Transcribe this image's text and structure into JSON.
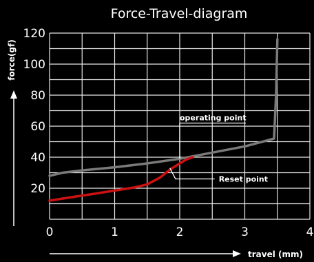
{
  "chart_data": {
    "type": "line",
    "title": "Force-Travel-diagram",
    "xlabel": "travel (mm)",
    "ylabel": "force(gf)",
    "xlim": [
      0,
      4
    ],
    "ylim": [
      0,
      120
    ],
    "x_ticks": [
      "0",
      "1",
      "2",
      "3",
      "4"
    ],
    "y_ticks": [
      "20",
      "40",
      "60",
      "80",
      "100",
      "120"
    ],
    "grid": true,
    "colors": {
      "background": "#000000",
      "grid": "#e8e8e8",
      "press_curve": "#7a7a7a",
      "release_curve": "#cc1111",
      "text": "#ffffff"
    },
    "series": [
      {
        "color": "#7a7a7a",
        "x": [
          0,
          0.2,
          0.5,
          1.0,
          1.5,
          2.0,
          2.5,
          3.0,
          3.45,
          3.48,
          3.5
        ],
        "y": [
          28,
          30,
          31.5,
          33.5,
          36,
          39,
          43,
          47,
          52,
          80,
          116
        ]
      },
      {
        "color": "#cc1111",
        "x": [
          0,
          0.3,
          0.7,
          1.0,
          1.3,
          1.5,
          1.7,
          1.85,
          2.0,
          2.1,
          2.2
        ],
        "y": [
          12,
          14,
          16.5,
          18.5,
          20.5,
          22.5,
          27,
          32,
          36,
          38.5,
          40
        ]
      }
    ],
    "annotations": [
      {
        "text": "operating point",
        "point": [
          2.0,
          39
        ],
        "text_at": [
          2.0,
          62
        ]
      },
      {
        "text": "Reset point",
        "point": [
          1.85,
          33
        ],
        "text_at": [
          2.6,
          26
        ]
      }
    ]
  }
}
